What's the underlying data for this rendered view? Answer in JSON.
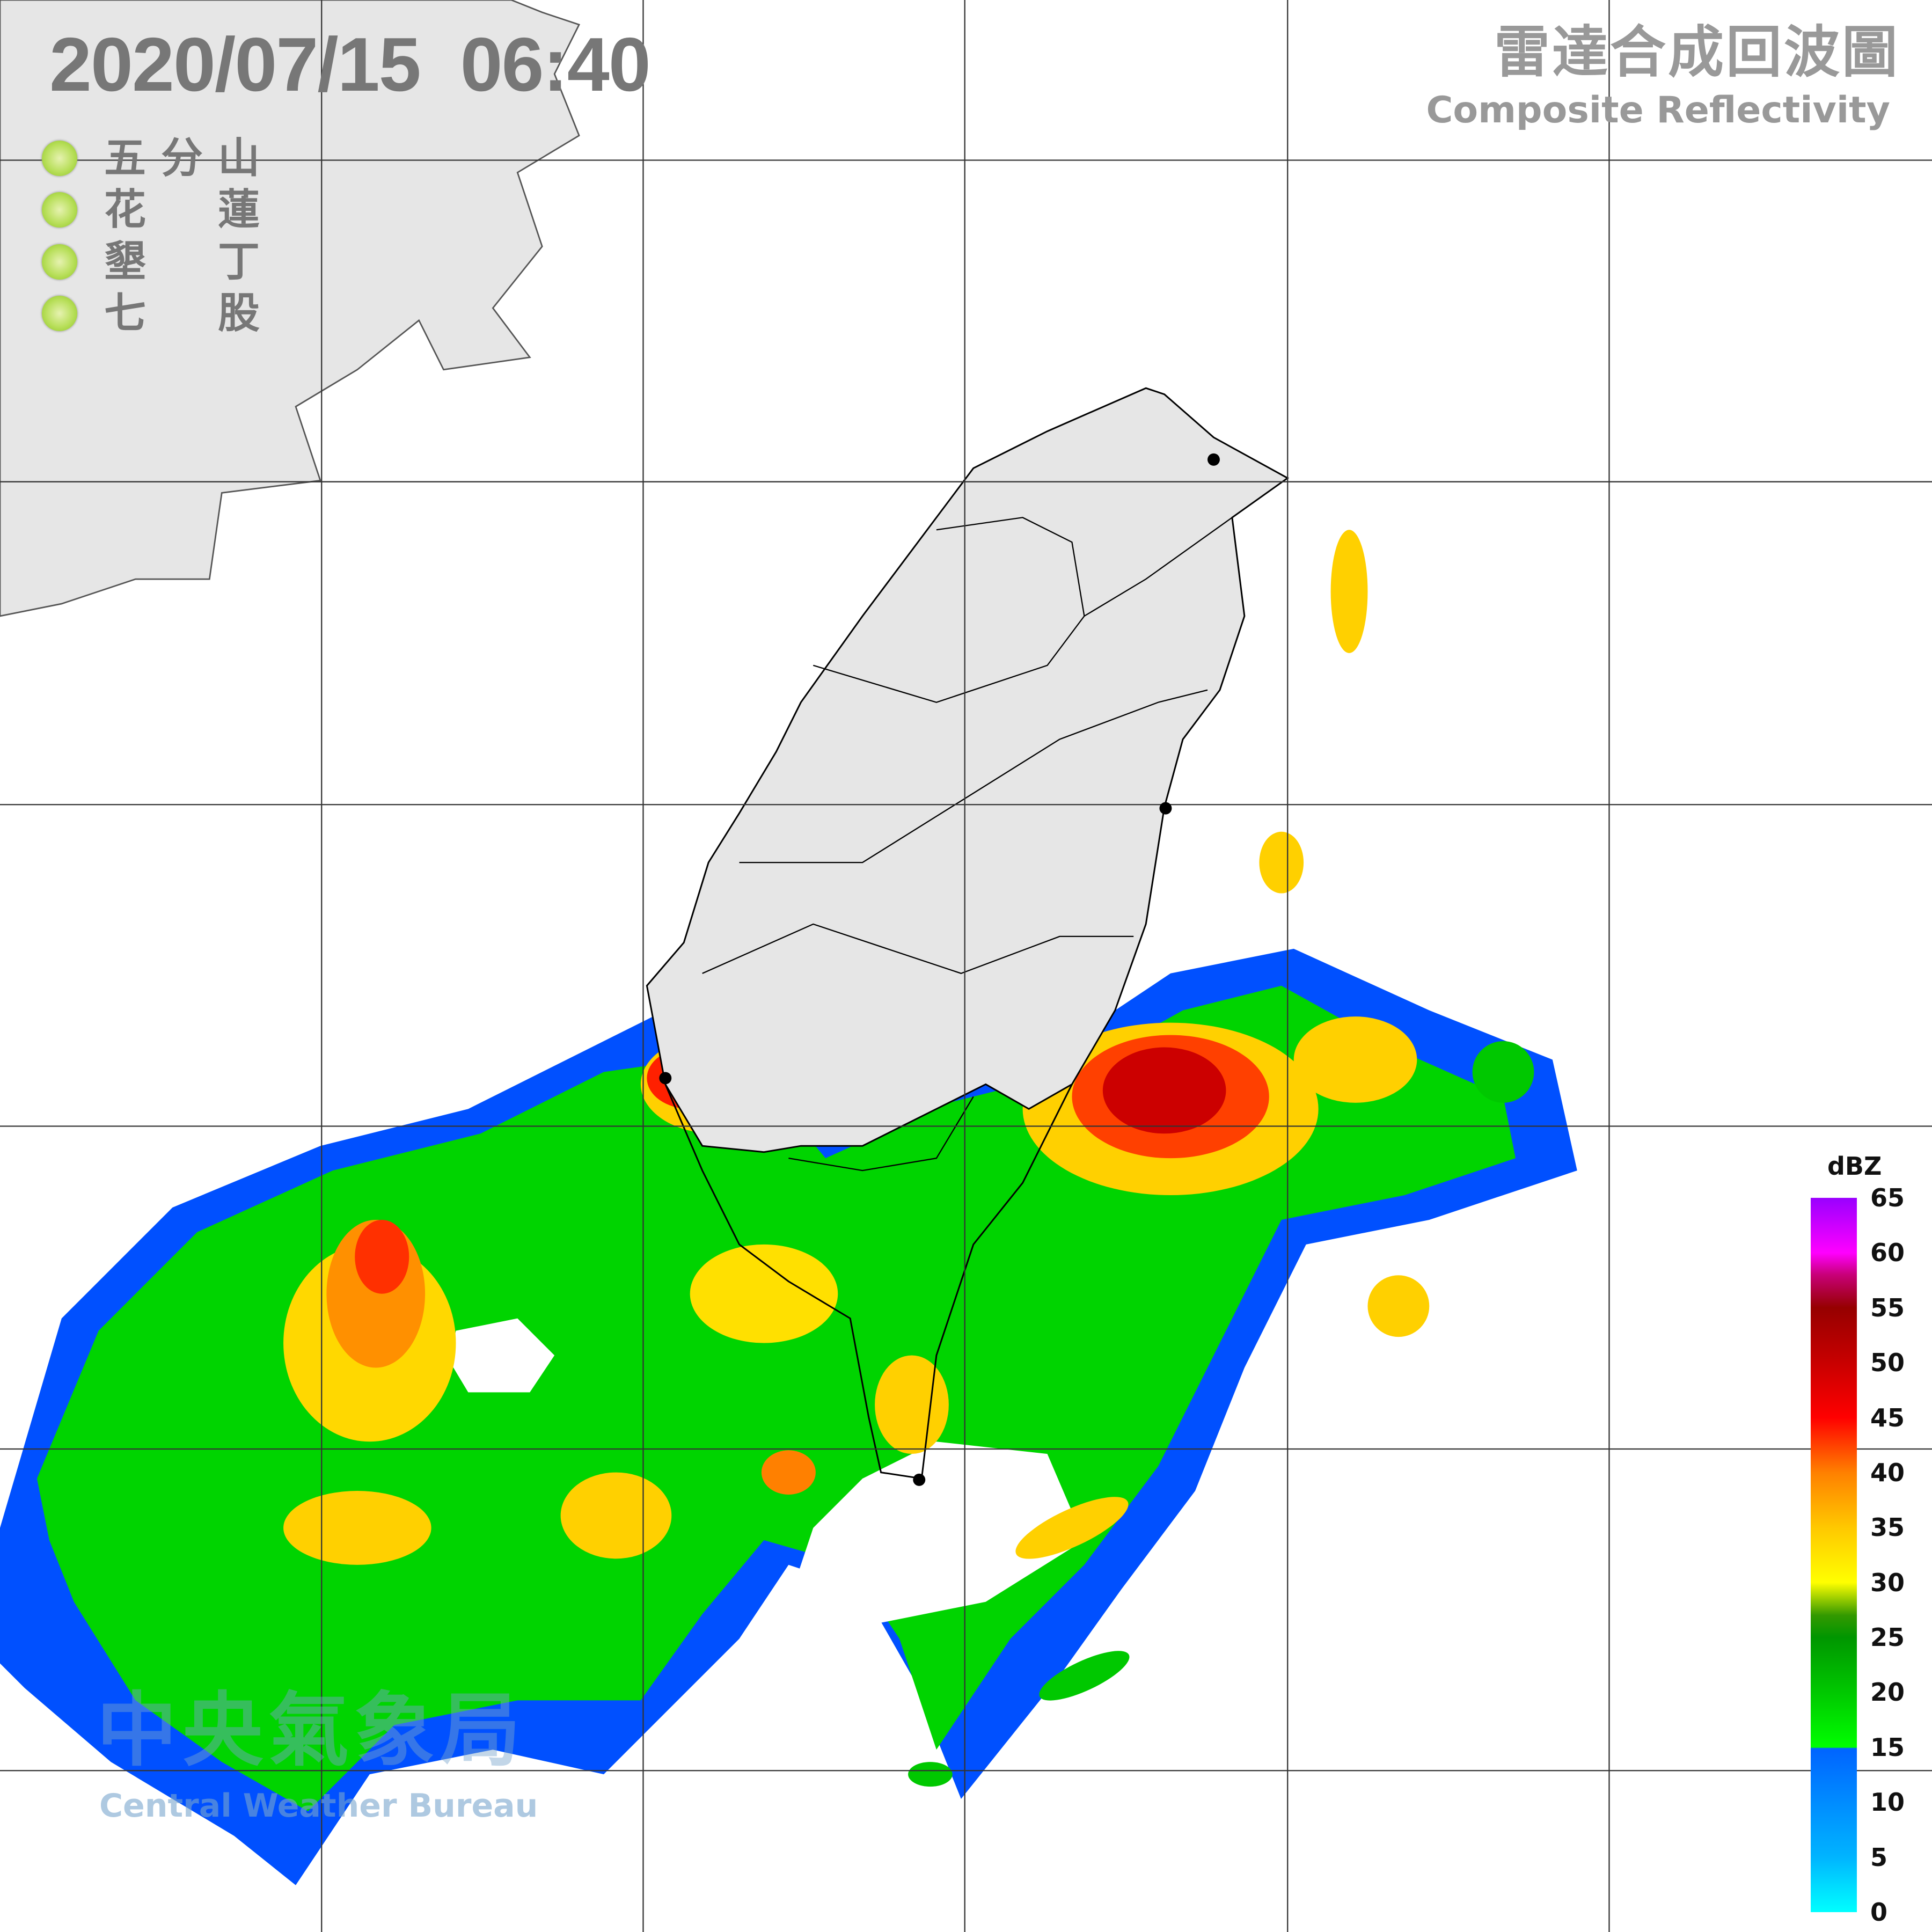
{
  "header": {
    "datetime": "2020/07/15  06:40",
    "product_zh": "雷達合成回波圖",
    "product_en": "Composite Reflectivity"
  },
  "stations": [
    {
      "chars": [
        "五",
        "分",
        "山"
      ],
      "status_color": "#a6d63a"
    },
    {
      "chars": [
        "花",
        "蓮"
      ],
      "status_color": "#a6d63a"
    },
    {
      "chars": [
        "墾",
        "丁"
      ],
      "status_color": "#a6d63a"
    },
    {
      "chars": [
        "七",
        "股"
      ],
      "status_color": "#a6d63a"
    }
  ],
  "colorbar": {
    "unit": "dBZ",
    "ticks": [
      "65",
      "60",
      "55",
      "50",
      "45",
      "40",
      "35",
      "30",
      "25",
      "20",
      "15",
      "10",
      "5",
      "0"
    ],
    "colors": {
      "0": "#00ffff",
      "5": "#00b4ff",
      "10": "#0064ff",
      "15": "#00ff00",
      "20": "#00c800",
      "25": "#009600",
      "27": "#339900",
      "30": "#ffff00",
      "35": "#ffc800",
      "40": "#ff8000",
      "45": "#ff0000",
      "50": "#c80000",
      "55": "#960000",
      "58": "#c80078",
      "60": "#ff00ff",
      "65": "#9900ff"
    }
  },
  "watermark": {
    "zh": "中央氣象局",
    "en": "Central Weather Bureau"
  },
  "map": {
    "land_color": "#e6e6e6",
    "grid_color": "#333333",
    "coast_color": "#000000"
  }
}
